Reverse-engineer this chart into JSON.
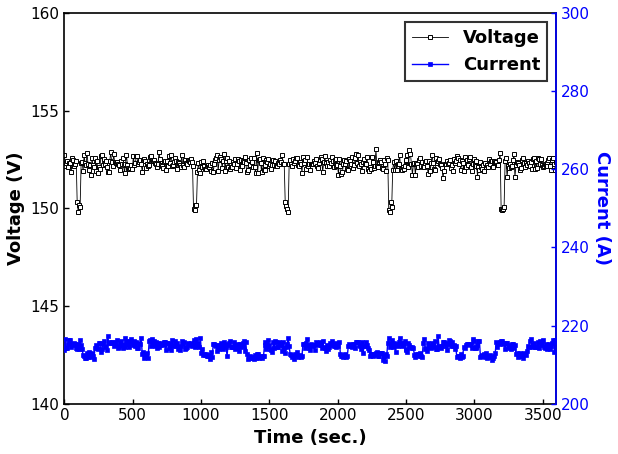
{
  "title": "",
  "xlabel": "Time (sec.)",
  "ylabel_left": "Voltage (V)",
  "ylabel_right": "Current (A)",
  "xlim": [
    0,
    3600
  ],
  "ylim_left": [
    140,
    160
  ],
  "ylim_right": [
    200,
    300
  ],
  "yticks_left": [
    140,
    145,
    150,
    155,
    160
  ],
  "yticks_right": [
    200,
    220,
    240,
    260,
    280,
    300
  ],
  "xticks": [
    0,
    500,
    1000,
    1500,
    2000,
    2500,
    3000,
    3500
  ],
  "voltage_color": "#000000",
  "current_color": "#0000FF",
  "legend_voltage": "Voltage",
  "legend_current": "Current",
  "n_points": 500,
  "voltage_base": 152.3,
  "voltage_noise": 0.25,
  "voltage_dip_locs": [
    100,
    950,
    1620,
    2380,
    3200
  ],
  "voltage_dip_val": 150.1,
  "current_base": 143.0,
  "current_noise": 0.18,
  "current_dip_val": 142.45,
  "background_color": "#ffffff",
  "figsize": [
    6.18,
    4.54
  ],
  "dpi": 100
}
